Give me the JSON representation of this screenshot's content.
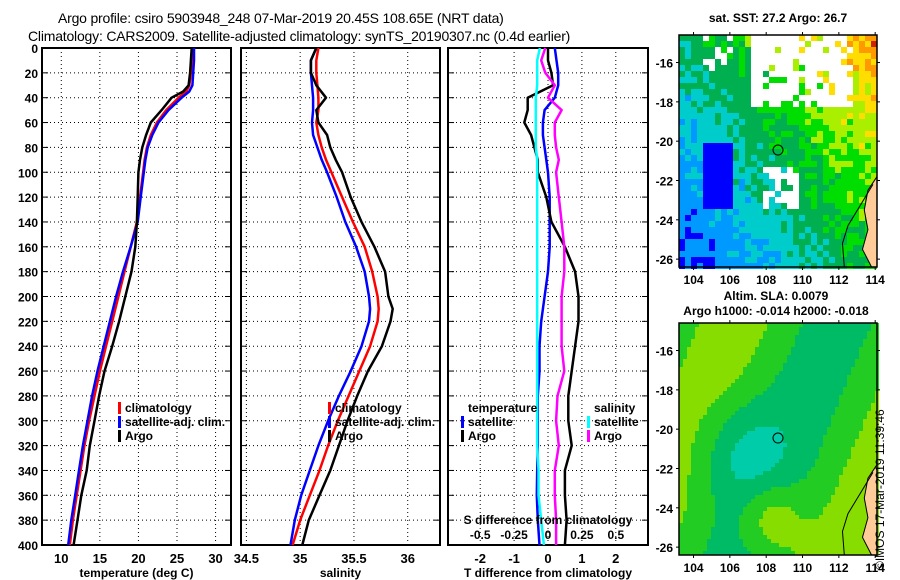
{
  "header": {
    "line1": "Argo profile: csiro 5903948_248 07-Mar-2019 20.45S 108.65E (NRT data)",
    "line2": "Climatology: CARS2009. Satellite-adjusted climatology: synTS_20190307.nc (0.4d earlier)"
  },
  "colors": {
    "climatology": "#ff0000",
    "satellite_adj": "#0000ff",
    "argo": "#000000",
    "s_satellite": "#00ffff",
    "s_argo": "#ff00ff",
    "land": "#ffcc99"
  },
  "chart_data": [
    {
      "id": "temperature",
      "type": "line",
      "xlabel": "temperature (deg C)",
      "ylabel": "",
      "xlim": [
        7.5,
        32
      ],
      "ylim": [
        400,
        0
      ],
      "xticks": [
        10,
        15,
        20,
        25,
        30
      ],
      "yticks": [
        0,
        20,
        40,
        60,
        80,
        100,
        120,
        140,
        160,
        180,
        200,
        220,
        240,
        260,
        280,
        300,
        320,
        340,
        360,
        380,
        400
      ],
      "grid": true,
      "legend": {
        "placement": "lower-right",
        "entries": [
          "climatology",
          "satellite-adj. clim.",
          "Argo"
        ]
      },
      "depth": [
        0,
        10,
        20,
        30,
        35,
        40,
        50,
        60,
        70,
        80,
        90,
        100,
        120,
        140,
        160,
        180,
        200,
        220,
        240,
        260,
        280,
        300,
        320,
        340,
        360,
        380,
        400
      ],
      "series": [
        {
          "name": "climatology",
          "color": "#ff0000",
          "values": [
            27.0,
            26.9,
            26.8,
            26.6,
            26.2,
            25.2,
            23.6,
            22.4,
            21.6,
            21.1,
            20.8,
            20.6,
            20.2,
            19.8,
            19.0,
            18.2,
            17.4,
            16.6,
            15.8,
            15.0,
            14.3,
            13.6,
            13.0,
            12.5,
            12.0,
            11.5,
            11.1
          ]
        },
        {
          "name": "satellite-adj. clim.",
          "color": "#0000ff",
          "values": [
            27.2,
            27.2,
            27.1,
            27.0,
            26.6,
            25.6,
            23.9,
            22.6,
            21.8,
            21.2,
            20.9,
            20.7,
            20.3,
            19.9,
            19.0,
            18.0,
            17.1,
            16.3,
            15.5,
            14.7,
            14.0,
            13.4,
            12.8,
            12.3,
            11.8,
            11.3,
            10.9
          ]
        },
        {
          "name": "Argo",
          "color": "#000000",
          "values": [
            26.9,
            26.8,
            26.7,
            26.5,
            25.8,
            24.3,
            23.0,
            21.6,
            21.0,
            20.5,
            20.2,
            20.0,
            19.9,
            19.8,
            19.6,
            19.1,
            18.3,
            17.5,
            16.6,
            15.6,
            14.9,
            14.3,
            13.7,
            13.3,
            12.6,
            12.1,
            11.6
          ]
        }
      ]
    },
    {
      "id": "salinity",
      "type": "line",
      "xlabel": "salinity",
      "ylabel": "",
      "xlim": [
        34.45,
        36.3
      ],
      "ylim": [
        400,
        0
      ],
      "xticks": [
        34.5,
        35,
        35.5,
        36
      ],
      "grid": true,
      "legend": {
        "placement": "lower-center",
        "entries": [
          "climatology",
          "satellite-adj. clim.",
          "Argo"
        ]
      },
      "depth": [
        0,
        10,
        20,
        30,
        40,
        50,
        60,
        70,
        80,
        90,
        100,
        120,
        140,
        160,
        180,
        200,
        210,
        220,
        240,
        260,
        280,
        300,
        320,
        340,
        360,
        380,
        400
      ],
      "series": [
        {
          "name": "climatology",
          "color": "#ff0000",
          "values": [
            35.17,
            35.15,
            35.15,
            35.16,
            35.17,
            35.17,
            35.15,
            35.17,
            35.2,
            35.24,
            35.29,
            35.39,
            35.49,
            35.6,
            35.67,
            35.72,
            35.73,
            35.72,
            35.65,
            35.55,
            35.45,
            35.35,
            35.26,
            35.18,
            35.09,
            35.0,
            34.93
          ]
        },
        {
          "name": "satellite-adj. clim.",
          "color": "#0000ff",
          "values": [
            35.15,
            35.1,
            35.1,
            35.11,
            35.12,
            35.12,
            35.11,
            35.12,
            35.16,
            35.2,
            35.25,
            35.34,
            35.42,
            35.52,
            35.6,
            35.64,
            35.65,
            35.64,
            35.57,
            35.47,
            35.36,
            35.26,
            35.17,
            35.09,
            35.01,
            34.95,
            34.91
          ]
        },
        {
          "name": "Argo",
          "color": "#000000",
          "values": [
            35.15,
            35.1,
            35.1,
            35.15,
            35.24,
            35.15,
            35.17,
            35.25,
            35.28,
            35.33,
            35.39,
            35.47,
            35.57,
            35.69,
            35.79,
            35.82,
            35.86,
            35.84,
            35.76,
            35.63,
            35.53,
            35.44,
            35.36,
            35.28,
            35.18,
            35.08,
            35.02
          ]
        }
      ]
    },
    {
      "id": "difference",
      "type": "line",
      "xlabel": "T difference from climatology",
      "x2label": "S difference from climatology",
      "xlim": [
        -2.95,
        2.95
      ],
      "x2lim": [
        -0.7375,
        0.7375
      ],
      "ylim": [
        400,
        0
      ],
      "xticks": [
        -2,
        -1,
        0,
        1,
        2
      ],
      "x2ticks": [
        -0.5,
        -0.25,
        0,
        0.25,
        0.5
      ],
      "x2ticklabels": [
        "-0.5",
        "-0.25",
        "0",
        "0.25",
        "0.5"
      ],
      "grid": true,
      "legend": {
        "temperature": {
          "title": "temperature",
          "entries": [
            "satellite",
            "Argo"
          ]
        },
        "salinity": {
          "title": "salinity",
          "entries": [
            "satellite",
            "Argo"
          ]
        }
      },
      "depth": [
        0,
        10,
        20,
        30,
        40,
        50,
        60,
        70,
        80,
        90,
        100,
        120,
        140,
        160,
        180,
        200,
        220,
        240,
        260,
        280,
        300,
        320,
        340,
        360,
        380,
        400
      ],
      "series": [
        {
          "name": "T satellite",
          "group": "temperature",
          "axis": "T",
          "color": "#0000ff",
          "values": [
            0.2,
            0.25,
            0.3,
            0.3,
            0.2,
            -0.1,
            -0.15,
            -0.15,
            -0.1,
            -0.05,
            0.0,
            0.05,
            0.05,
            0.05,
            0.0,
            -0.1,
            -0.2,
            -0.25,
            -0.25,
            -0.3,
            -0.3,
            -0.3,
            -0.32,
            -0.33,
            -0.3,
            -0.25
          ]
        },
        {
          "name": "T Argo",
          "group": "temperature",
          "axis": "T",
          "color": "#000000",
          "values": [
            0.0,
            0.0,
            0.1,
            0.15,
            -0.6,
            -0.6,
            -0.7,
            -0.5,
            -0.4,
            -0.3,
            -0.3,
            -0.05,
            0.1,
            0.5,
            0.8,
            0.9,
            0.9,
            0.8,
            0.7,
            0.6,
            0.6,
            0.7,
            0.5,
            0.5,
            0.55,
            0.5
          ]
        },
        {
          "name": "S satellite",
          "group": "salinity",
          "axis": "S",
          "color": "#00ffff",
          "values": [
            -0.06,
            -0.08,
            -0.08,
            -0.08,
            -0.09,
            -0.09,
            -0.09,
            -0.09,
            -0.09,
            -0.08,
            -0.08,
            -0.08,
            -0.08,
            -0.08,
            -0.08,
            -0.08,
            -0.08,
            -0.08,
            -0.08,
            -0.08,
            -0.08,
            -0.08,
            -0.07,
            -0.07,
            -0.05,
            -0.03
          ]
        },
        {
          "name": "S Argo",
          "group": "salinity",
          "axis": "S",
          "color": "#ff00ff",
          "values": [
            -0.02,
            -0.05,
            -0.02,
            0.05,
            0.0,
            0.1,
            0.05,
            0.05,
            0.06,
            0.08,
            0.06,
            0.08,
            0.1,
            0.12,
            0.12,
            0.1,
            0.1,
            0.1,
            0.12,
            0.07,
            0.06,
            0.08,
            0.05,
            0.05,
            0.06,
            0.06
          ]
        }
      ]
    },
    {
      "id": "sst-map",
      "type": "heatmap",
      "title": "sat. SST: 27.2 Argo: 26.7",
      "xlim": [
        103.2,
        114.1
      ],
      "ylim": [
        -26.4,
        -14.6
      ],
      "xticks": [
        104,
        106,
        108,
        110,
        112,
        114
      ],
      "yticks": [
        -16,
        -18,
        -20,
        -22,
        -24,
        -26
      ],
      "marker": {
        "lon": 108.65,
        "lat": -20.45
      }
    },
    {
      "id": "sla-map",
      "type": "heatmap",
      "title_line1": "Altim. SLA: 0.0079",
      "title_line2": "Argo h1000: -0.014 h2000: -0.018",
      "xlim": [
        103.2,
        114.1
      ],
      "ylim": [
        -26.4,
        -14.6
      ],
      "xticks": [
        104,
        106,
        108,
        110,
        112,
        114
      ],
      "yticks": [
        -16,
        -18,
        -20,
        -22,
        -24,
        -26
      ],
      "marker": {
        "lon": 108.65,
        "lat": -20.45
      }
    }
  ],
  "footer": {
    "stamp": "©IMOS 17-Mar-2019 11:39:46"
  }
}
